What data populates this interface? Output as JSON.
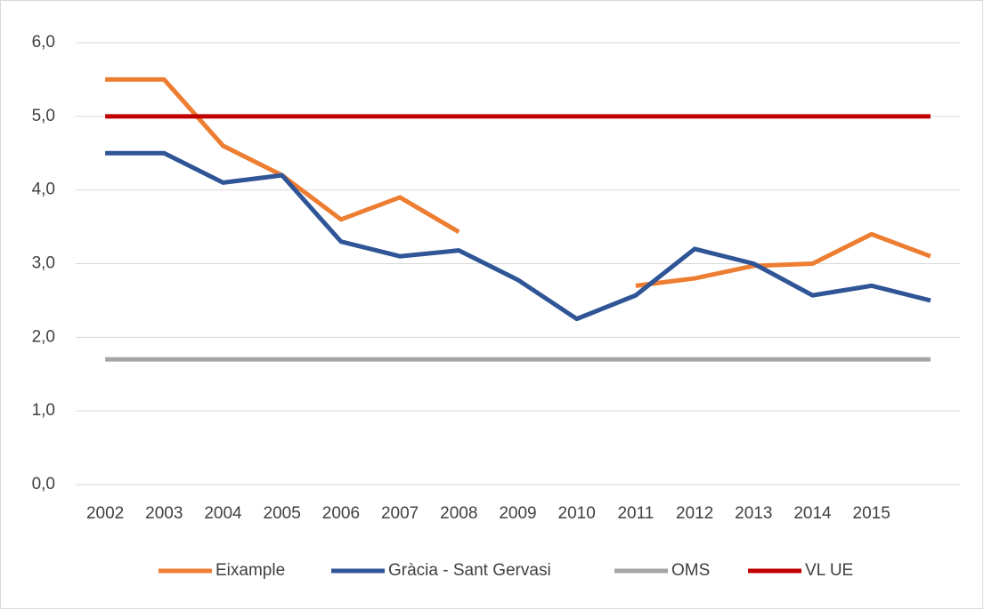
{
  "chart_data": {
    "type": "line",
    "categories": [
      "2002",
      "2003",
      "2004",
      "2005",
      "2006",
      "2007",
      "2008",
      "2009",
      "2010",
      "2011",
      "2012",
      "2013",
      "2014",
      "2015",
      null
    ],
    "series": [
      {
        "name": "Eixample",
        "color": "#ed7d31",
        "values": [
          5.5,
          5.5,
          4.6,
          4.2,
          3.6,
          3.9,
          3.43,
          null,
          null,
          2.7,
          2.8,
          2.97,
          3.0,
          3.4,
          3.1
        ]
      },
      {
        "name": "Gràcia - Sant Gervasi",
        "color": "#2f5597",
        "values": [
          4.5,
          4.5,
          4.1,
          4.2,
          3.3,
          3.1,
          3.18,
          2.78,
          2.25,
          2.57,
          3.2,
          3.0,
          2.57,
          2.7,
          2.5
        ]
      },
      {
        "name": "OMS",
        "color": "#a5a5a5",
        "values": [
          1.7,
          1.7,
          1.7,
          1.7,
          1.7,
          1.7,
          1.7,
          1.7,
          1.7,
          1.7,
          1.7,
          1.7,
          1.7,
          1.7,
          1.7
        ]
      },
      {
        "name": "VL UE",
        "color": "#c00000",
        "values": [
          5.0,
          5.0,
          5.0,
          5.0,
          5.0,
          5.0,
          5.0,
          5.0,
          5.0,
          5.0,
          5.0,
          5.0,
          5.0,
          5.0,
          5.0
        ]
      }
    ],
    "ylim": [
      0,
      6
    ],
    "yticks": [
      {
        "value": 0,
        "label": "0,0"
      },
      {
        "value": 1,
        "label": "1,0"
      },
      {
        "value": 2,
        "label": "2,0"
      },
      {
        "value": 3,
        "label": "3,0"
      },
      {
        "value": 4,
        "label": "4,0"
      },
      {
        "value": 5,
        "label": "5,0"
      },
      {
        "value": 6,
        "label": "6,0"
      }
    ],
    "grid": true,
    "legend": "bottom"
  }
}
